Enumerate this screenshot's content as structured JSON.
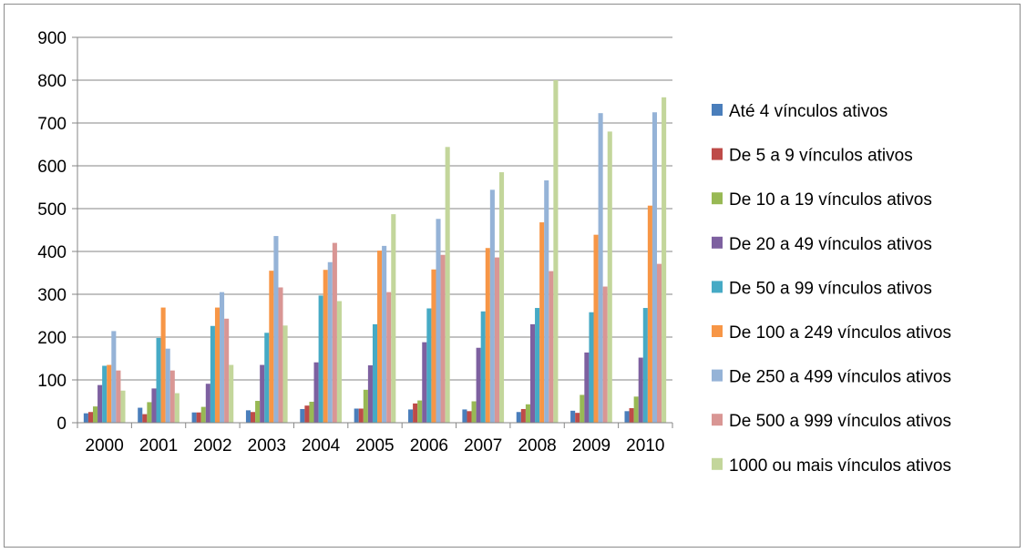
{
  "chart_data": {
    "type": "bar",
    "title": "",
    "xlabel": "",
    "ylabel": "",
    "ylim": [
      0,
      900
    ],
    "yticks": [
      0,
      100,
      200,
      300,
      400,
      500,
      600,
      700,
      800,
      900
    ],
    "grid": true,
    "legend_position": "right",
    "categories": [
      "2000",
      "2001",
      "2002",
      "2003",
      "2004",
      "2005",
      "2006",
      "2007",
      "2008",
      "2009",
      "2010"
    ],
    "series": [
      {
        "name": "Até 4 vínculos ativos",
        "color": "#4a7ebb",
        "values": [
          22,
          35,
          24,
          29,
          32,
          33,
          31,
          31,
          25,
          28,
          27
        ]
      },
      {
        "name": "De 5 a 9 vínculos ativos",
        "color": "#be4b48",
        "values": [
          25,
          20,
          24,
          25,
          40,
          33,
          45,
          27,
          32,
          23,
          34
        ]
      },
      {
        "name": "De 10 a 19 vínculos ativos",
        "color": "#98b954",
        "values": [
          38,
          48,
          37,
          51,
          49,
          77,
          52,
          50,
          43,
          65,
          61
        ]
      },
      {
        "name": "De 20 a 49 vínculos ativos",
        "color": "#7d60a0",
        "values": [
          88,
          80,
          91,
          135,
          141,
          134,
          188,
          175,
          230,
          164,
          152
        ]
      },
      {
        "name": "De 50 a 99 vínculos ativos",
        "color": "#46aac5",
        "values": [
          133,
          198,
          226,
          210,
          297,
          230,
          267,
          260,
          268,
          258,
          268
        ]
      },
      {
        "name": "De 100 a 249 vínculos ativos",
        "color": "#f79646",
        "values": [
          135,
          269,
          269,
          355,
          357,
          402,
          358,
          408,
          468,
          439,
          507
        ]
      },
      {
        "name": "De 250 a 499 vínculos ativos",
        "color": "#95b3d7",
        "values": [
          214,
          173,
          305,
          436,
          375,
          413,
          476,
          544,
          566,
          723,
          725
        ]
      },
      {
        "name": "De 500 a 999 vínculos ativos",
        "color": "#d99694",
        "values": [
          122,
          122,
          243,
          316,
          420,
          305,
          392,
          386,
          354,
          318,
          371
        ]
      },
      {
        "name": "1000 ou mais vínculos ativos",
        "color": "#c3d69b",
        "values": [
          75,
          69,
          135,
          227,
          284,
          487,
          644,
          585,
          800,
          680,
          760
        ]
      }
    ]
  }
}
